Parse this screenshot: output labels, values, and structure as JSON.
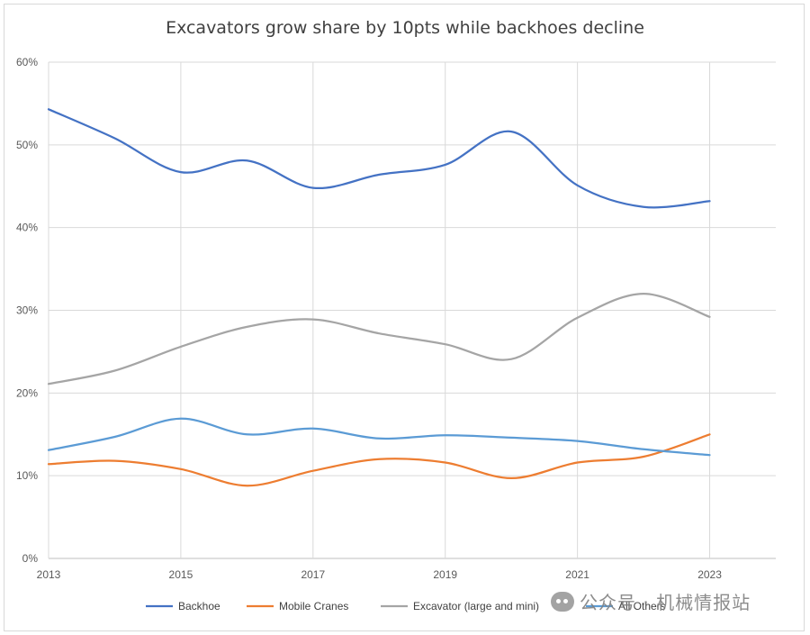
{
  "chart_data": {
    "type": "line",
    "title": "Excavators grow share by 10pts while backhoes decline",
    "x": [
      2013,
      2014,
      2015,
      2016,
      2017,
      2018,
      2019,
      2020,
      2021,
      2022,
      2023
    ],
    "x_ticks": [
      "2013",
      "2015",
      "2017",
      "2019",
      "2021",
      "2023"
    ],
    "y_ticks": [
      "0%",
      "10%",
      "20%",
      "30%",
      "40%",
      "50%",
      "60%"
    ],
    "ylim": [
      0,
      60
    ],
    "xlim": [
      2013,
      2024
    ],
    "grid": true,
    "legend_position": "bottom",
    "series": [
      {
        "name": "Backhoe",
        "color": "#4472C4",
        "values": [
          54.3,
          50.8,
          46.7,
          48.1,
          44.8,
          46.4,
          47.6,
          51.6,
          45.1,
          42.5,
          43.2
        ]
      },
      {
        "name": "Mobile Cranes",
        "color": "#ED7D31",
        "values": [
          11.4,
          11.8,
          10.8,
          8.8,
          10.6,
          12.0,
          11.6,
          9.7,
          11.6,
          12.3,
          15.0
        ]
      },
      {
        "name": "Excavator (large and mini)",
        "color": "#A5A5A5",
        "values": [
          21.1,
          22.7,
          25.6,
          28.0,
          28.9,
          27.2,
          25.9,
          24.1,
          29.1,
          32.0,
          29.2
        ]
      },
      {
        "name": "All Others",
        "color": "#5B9BD5",
        "values": [
          13.1,
          14.7,
          16.9,
          15.0,
          15.7,
          14.5,
          14.9,
          14.6,
          14.2,
          13.2,
          12.5
        ]
      }
    ]
  },
  "watermark": {
    "text": "公众号 · 机械情报站",
    "icon": "wechat-icon"
  }
}
